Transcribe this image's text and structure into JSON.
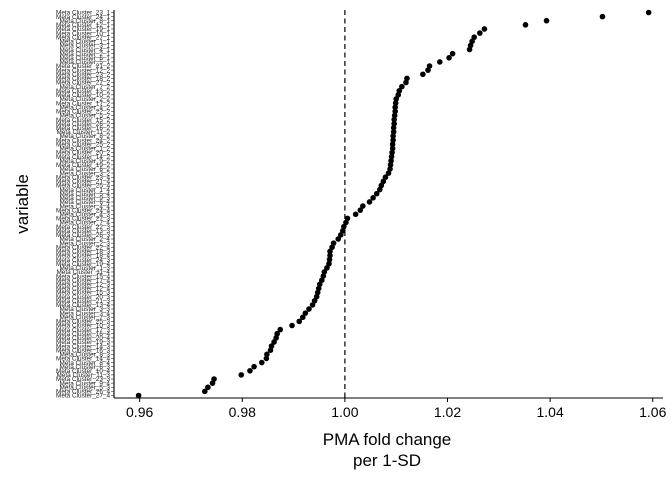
{
  "chart_data": {
    "type": "scatter",
    "xlabel": "PMA fold change\nper 1-SD",
    "ylabel": "variable",
    "xlim": [
      0.955,
      1.062
    ],
    "xticks": [
      0.96,
      0.98,
      1.0,
      1.02,
      1.04,
      1.06
    ],
    "xtick_labels": [
      "0.96",
      "0.98",
      "1.00",
      "1.02",
      "1.04",
      "1.06"
    ],
    "reference_line": {
      "x": 1.0,
      "style": "dashed"
    },
    "grid": false,
    "legend": "none",
    "colors": {
      "point": "#000000",
      "axis": "#000000",
      "background": "#ffffff"
    },
    "points": [
      {
        "label": "Meta Cluster_27_4",
        "value": 0.9598
      },
      {
        "label": "Meta Cluster_26_4",
        "value": 0.9727
      },
      {
        "label": "Meta Cluster_5_3",
        "value": 0.9733
      },
      {
        "label": "Meta Cluster_9_4",
        "value": 0.9742
      },
      {
        "label": "Meta Cluster_23_3",
        "value": 0.9745
      },
      {
        "label": "Meta Cluster_11_3",
        "value": 0.9798
      },
      {
        "label": "Meta Cluster_10_4",
        "value": 0.9815
      },
      {
        "label": "Meta Cluster_6_3",
        "value": 0.9823
      },
      {
        "label": "Meta Cluster_8_4",
        "value": 0.9838
      },
      {
        "label": "Meta Cluster_14_4",
        "value": 0.9847
      },
      {
        "label": "Meta Cluster_8_3",
        "value": 0.9848
      },
      {
        "label": "Meta Cluster_16_3",
        "value": 0.9855
      },
      {
        "label": "Meta Cluster_14_3",
        "value": 0.9857
      },
      {
        "label": "Meta Cluster_19_3",
        "value": 0.9862
      },
      {
        "label": "Meta Cluster_20_4",
        "value": 0.9866
      },
      {
        "label": "Meta Cluster_16_4",
        "value": 0.9868
      },
      {
        "label": "Meta Cluster_17_3",
        "value": 0.9874
      },
      {
        "label": "Meta Cluster_10_3",
        "value": 0.9897
      },
      {
        "label": "Meta Cluster_25_3",
        "value": 0.9911
      },
      {
        "label": "Meta Cluster_7_3",
        "value": 0.9918
      },
      {
        "label": "Meta Cluster_3_4",
        "value": 0.9923
      },
      {
        "label": "Meta Cluster_3_3",
        "value": 0.993
      },
      {
        "label": "Meta Cluster_13_4",
        "value": 0.9937
      },
      {
        "label": "Meta Cluster_21_3",
        "value": 0.9941
      },
      {
        "label": "Meta Cluster_20_3",
        "value": 0.9945
      },
      {
        "label": "Meta Cluster_15_3",
        "value": 0.9947
      },
      {
        "label": "Meta Cluster_12_4",
        "value": 0.9949
      },
      {
        "label": "Meta Cluster_12_3",
        "value": 0.9951
      },
      {
        "label": "Meta Cluster_17_4",
        "value": 0.9955
      },
      {
        "label": "Meta Cluster_15_4",
        "value": 0.9958
      },
      {
        "label": "Meta Cluster_11_4",
        "value": 0.996
      },
      {
        "label": "Meta Cluster_1_3",
        "value": 0.9965
      },
      {
        "label": "Meta Cluster_19_4",
        "value": 0.9969
      },
      {
        "label": "Meta Cluster_24_3",
        "value": 0.997
      },
      {
        "label": "Meta Cluster_18_4",
        "value": 0.9971
      },
      {
        "label": "Meta Cluster_18_3",
        "value": 0.9971
      },
      {
        "label": "Meta Cluster_22_4",
        "value": 0.9975
      },
      {
        "label": "Meta Cluster_2_3",
        "value": 0.9978
      },
      {
        "label": "Meta Cluster_2_4",
        "value": 0.9987
      },
      {
        "label": "Meta Cluster_26_3",
        "value": 0.9992
      },
      {
        "label": "Meta Cluster_13_3",
        "value": 0.9996
      },
      {
        "label": "Meta Cluster_22_3",
        "value": 0.9998
      },
      {
        "label": "Meta Cluster_7_4",
        "value": 1.0002
      },
      {
        "label": "Meta Cluster_27_3",
        "value": 1.0005
      },
      {
        "label": "Meta Cluster_4_3",
        "value": 1.0021
      },
      {
        "label": "Meta Cluster_24_4",
        "value": 1.003
      },
      {
        "label": "Meta Cluster_4_4",
        "value": 1.0035
      },
      {
        "label": "Meta Cluster_6_4",
        "value": 1.0048
      },
      {
        "label": "Meta Cluster_9_3",
        "value": 1.0055
      },
      {
        "label": "Meta Cluster_5_4",
        "value": 1.0062
      },
      {
        "label": "Meta Cluster_1_4",
        "value": 1.0068
      },
      {
        "label": "Meta Cluster_25_4",
        "value": 1.0071
      },
      {
        "label": "Meta Cluster_21_4",
        "value": 1.0075
      },
      {
        "label": "Meta Cluster_23_4",
        "value": 1.0079
      },
      {
        "label": "Meta Cluster_3_2",
        "value": 1.0085
      },
      {
        "label": "Meta Cluster_6_2",
        "value": 1.0088
      },
      {
        "label": "Meta Cluster_19_2",
        "value": 1.0089
      },
      {
        "label": "Meta Cluster_9_2",
        "value": 1.009
      },
      {
        "label": "Meta Cluster_14_2",
        "value": 1.0091
      },
      {
        "label": "Meta Cluster_20_2",
        "value": 1.0092
      },
      {
        "label": "Meta Cluster_1_2",
        "value": 1.0093
      },
      {
        "label": "Meta Cluster_25_2",
        "value": 1.0093
      },
      {
        "label": "Meta Cluster_24_2",
        "value": 1.0094
      },
      {
        "label": "Meta Cluster_8_2",
        "value": 1.0094
      },
      {
        "label": "Meta Cluster_11_2",
        "value": 1.0095
      },
      {
        "label": "Meta Cluster_16_2",
        "value": 1.0095
      },
      {
        "label": "Meta Cluster_26_2",
        "value": 1.0096
      },
      {
        "label": "Meta Cluster_15_2",
        "value": 1.0096
      },
      {
        "label": "Meta Cluster_5_2",
        "value": 1.0097
      },
      {
        "label": "Meta Cluster_22_2",
        "value": 1.0098
      },
      {
        "label": "Meta Cluster_4_2",
        "value": 1.0098
      },
      {
        "label": "Meta Cluster_17_2",
        "value": 1.0099
      },
      {
        "label": "Meta Cluster_2_2",
        "value": 1.01
      },
      {
        "label": "Meta Cluster_10_2",
        "value": 1.0104
      },
      {
        "label": "Meta Cluster_13_2",
        "value": 1.0106
      },
      {
        "label": "Meta Cluster_7_2",
        "value": 1.0111
      },
      {
        "label": "Meta Cluster_27_2",
        "value": 1.0119
      },
      {
        "label": "Meta Cluster_18_2",
        "value": 1.0121
      },
      {
        "label": "Meta Cluster_23_2",
        "value": 1.0152
      },
      {
        "label": "Meta Cluster_12_2",
        "value": 1.0162
      },
      {
        "label": "Meta Cluster_21_2",
        "value": 1.0165
      },
      {
        "label": "Meta Cluster_5_1",
        "value": 1.0185
      },
      {
        "label": "Meta Cluster_6_1",
        "value": 1.0203
      },
      {
        "label": "Meta Cluster_2_1",
        "value": 1.021
      },
      {
        "label": "Meta Cluster_4_1",
        "value": 1.0243
      },
      {
        "label": "Meta Cluster_3_1",
        "value": 1.0245
      },
      {
        "label": "Meta Cluster_1_1",
        "value": 1.0248
      },
      {
        "label": "Meta Cluster_27_1",
        "value": 1.0252
      },
      {
        "label": "Meta Cluster_10_1",
        "value": 1.0263
      },
      {
        "label": "Meta Cluster_19_1",
        "value": 1.0272
      },
      {
        "label": "Meta Cluster_12_1",
        "value": 1.0352
      },
      {
        "label": "Meta Cluster_8_1",
        "value": 1.0393
      },
      {
        "label": "Meta Cluster_24_1",
        "value": 1.0502
      },
      {
        "label": "Meta Cluster_23_1",
        "value": 1.0592
      }
    ]
  }
}
